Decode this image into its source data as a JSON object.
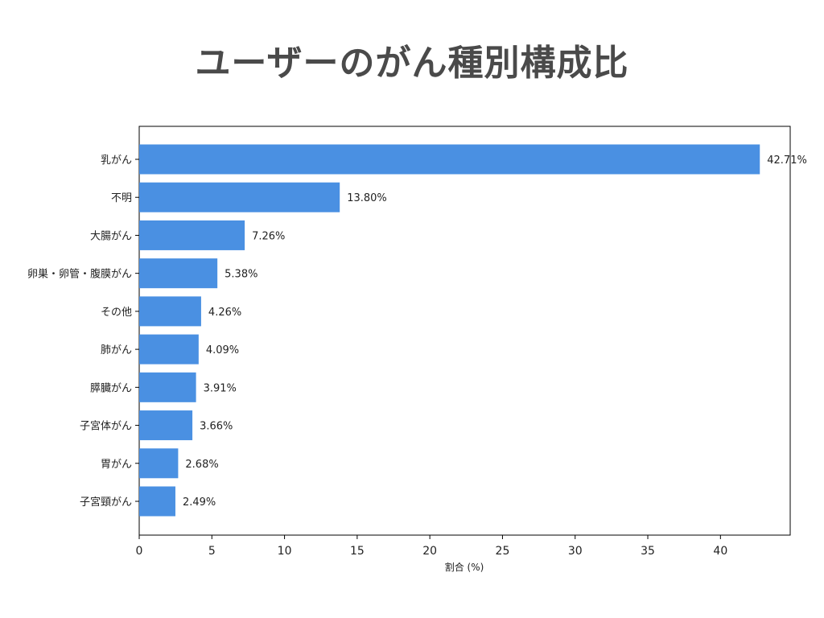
{
  "title": "ユーザーのがん種別構成比",
  "chart_data": {
    "type": "bar",
    "orientation": "horizontal",
    "title": "",
    "xlabel": "割合 (%)",
    "ylabel": "",
    "xlim": [
      0,
      44.8
    ],
    "xticks": [
      0,
      5,
      10,
      15,
      20,
      25,
      30,
      35,
      40
    ],
    "grid": false,
    "bar_color": "#4a90e2",
    "categories": [
      "乳がん",
      "不明",
      "大腸がん",
      "卵巣・卵管・腹膜がん",
      "その他",
      "肺がん",
      "膵臓がん",
      "子宮体がん",
      "胃がん",
      "子宮頸がん"
    ],
    "values": [
      42.71,
      13.8,
      7.26,
      5.38,
      4.26,
      4.09,
      3.91,
      3.66,
      2.68,
      2.49
    ],
    "value_labels": [
      "42.71%",
      "13.80%",
      "7.26%",
      "5.38%",
      "4.26%",
      "4.09%",
      "3.91%",
      "3.66%",
      "2.68%",
      "2.49%"
    ]
  }
}
